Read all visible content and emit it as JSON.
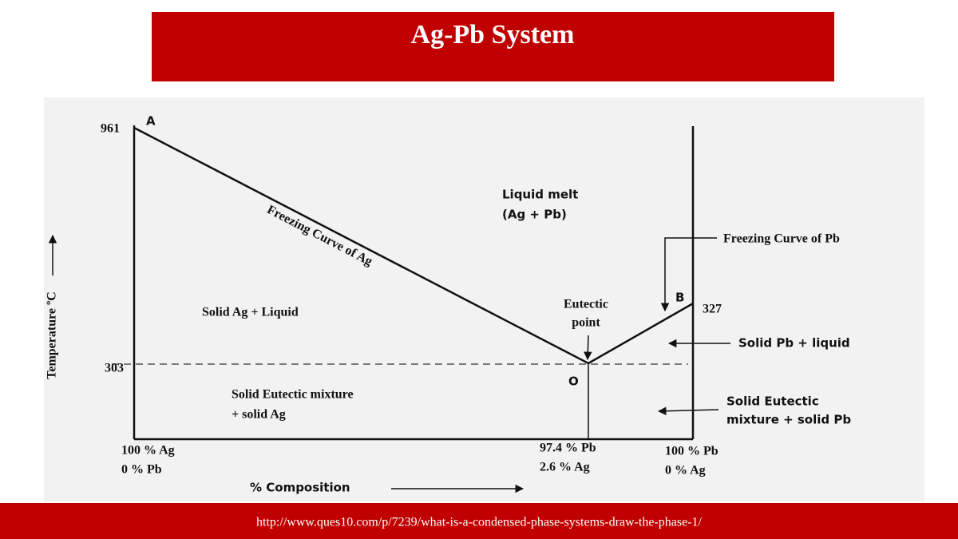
{
  "title": "Ag-Pb System",
  "diagram": {
    "temperatures": [
      "961",
      "303",
      "327"
    ],
    "points": [
      "A",
      "B",
      "O"
    ],
    "curve_labels": [
      "Freezing Curve of Ag",
      "Freezing Curve of  Pb"
    ],
    "regions": [
      [
        "Liquid melt",
        "(Ag + Pb)"
      ],
      [
        "Solid Ag + Liquid"
      ],
      [
        "Solid Pb + liquid"
      ],
      [
        "Solid Eutectic mixture",
        "+ solid Ag"
      ],
      [
        "Solid Eutectic",
        "mixture + solid Pb"
      ]
    ],
    "eutectic_label": [
      "Eutectic",
      "point"
    ],
    "compositions": [
      [
        "100 % Ag",
        "0 % Pb"
      ],
      [
        "97.4 % Pb",
        "2.6 % Ag"
      ],
      [
        "100 % Pb",
        "0 % Ag"
      ]
    ],
    "x_axis_label": "% Composition",
    "y_axis_label": "Temperature ºC"
  },
  "footer": {
    "source": "http://www.ques10.com/p/7239/what-is-a-condensed-phase-systems-draw-the-phase-1/"
  }
}
